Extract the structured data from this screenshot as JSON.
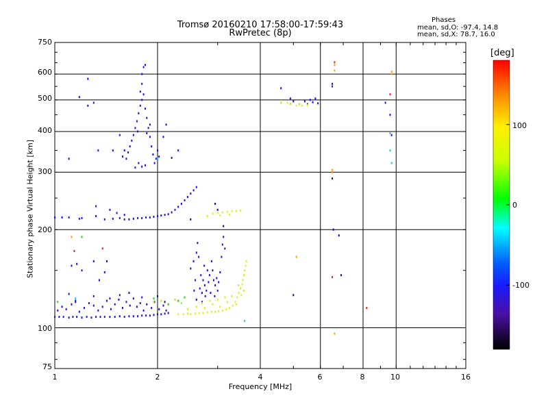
{
  "chart_data": {
    "type": "scatter",
    "title": "Tromsø 20160210 17:58:00-17:59:43",
    "subtitle": "RwPretec (8p)",
    "xlabel": "Frequency [MHz]",
    "ylabel": "Stationary phase Virtual Height [km]",
    "x_scale": "log",
    "y_scale": "log",
    "xlim": [
      1,
      16
    ],
    "ylim": [
      75,
      750
    ],
    "x_ticks": [
      1,
      2,
      4,
      6,
      8,
      10,
      16
    ],
    "y_ticks": [
      75,
      100,
      200,
      300,
      400,
      500,
      600,
      750
    ],
    "grid": true,
    "legend_box": {
      "title": "Phases",
      "line_o": "mean, sd,O: -97.4, 14.8",
      "line_x": "mean, sd,X:  78.7, 16.0"
    },
    "colorbar": {
      "unit": "[deg]",
      "range": [
        -180,
        180
      ],
      "ticks": [
        100,
        0,
        -100
      ]
    },
    "colors": {
      "blue": "#1414e6",
      "yellow": "#e4ec1e",
      "yellowgreen": "#b5e61e",
      "green": "#2ac82a",
      "cyan": "#1ec8e6",
      "orange": "#ff9a1a",
      "red": "#e02020",
      "navy": "#0c0c9a"
    },
    "series": [
      {
        "color": "blue",
        "points": [
          [
            1.0,
            108
          ],
          [
            1.03,
            108
          ],
          [
            1.06,
            108
          ],
          [
            1.1,
            107.5
          ],
          [
            1.13,
            108
          ],
          [
            1.16,
            108
          ],
          [
            1.2,
            107.5
          ],
          [
            1.24,
            108
          ],
          [
            1.28,
            107.5
          ],
          [
            1.32,
            108
          ],
          [
            1.36,
            108
          ],
          [
            1.4,
            108
          ],
          [
            1.45,
            108
          ],
          [
            1.5,
            108
          ],
          [
            1.55,
            108.5
          ],
          [
            1.6,
            108
          ],
          [
            1.65,
            108.5
          ],
          [
            1.7,
            108.5
          ],
          [
            1.75,
            108.5
          ],
          [
            1.8,
            109
          ],
          [
            1.85,
            109
          ],
          [
            1.9,
            109
          ],
          [
            1.95,
            109.5
          ],
          [
            2.0,
            110
          ],
          [
            2.05,
            110
          ],
          [
            2.1,
            110.5
          ],
          [
            2.15,
            111
          ],
          [
            1.02,
            113
          ],
          [
            1.05,
            116
          ],
          [
            1.08,
            114
          ],
          [
            1.12,
            118
          ],
          [
            1.15,
            120
          ],
          [
            1.18,
            112
          ],
          [
            1.22,
            115
          ],
          [
            1.26,
            119
          ],
          [
            1.3,
            117
          ],
          [
            1.34,
            113
          ],
          [
            1.38,
            116
          ],
          [
            1.42,
            121
          ],
          [
            1.46,
            114
          ],
          [
            1.5,
            118
          ],
          [
            1.54,
            122
          ],
          [
            1.58,
            115
          ],
          [
            1.62,
            120
          ],
          [
            1.66,
            117
          ],
          [
            1.7,
            123
          ],
          [
            1.74,
            116
          ],
          [
            1.78,
            119
          ],
          [
            1.82,
            113
          ],
          [
            1.86,
            118
          ],
          [
            1.92,
            115
          ],
          [
            1.96,
            120
          ],
          [
            2.02,
            114
          ],
          [
            2.08,
            117
          ],
          [
            2.12,
            113
          ],
          [
            1.1,
            127
          ],
          [
            1.15,
            121
          ],
          [
            1.3,
            125
          ],
          [
            1.45,
            123
          ],
          [
            1.55,
            126
          ],
          [
            1.65,
            128
          ],
          [
            1.8,
            124
          ],
          [
            1.0,
            218
          ],
          [
            1.05,
            218
          ],
          [
            1.1,
            218
          ],
          [
            1.18,
            216
          ],
          [
            1.32,
            220
          ],
          [
            1.4,
            215
          ],
          [
            1.48,
            216
          ],
          [
            1.55,
            217
          ],
          [
            1.6,
            215
          ],
          [
            1.65,
            215
          ],
          [
            1.7,
            216
          ],
          [
            1.75,
            217
          ],
          [
            1.8,
            217
          ],
          [
            1.85,
            218
          ],
          [
            1.9,
            218
          ],
          [
            1.95,
            219
          ],
          [
            2.0,
            220
          ],
          [
            2.05,
            221
          ],
          [
            2.1,
            222
          ],
          [
            2.15,
            223
          ],
          [
            2.2,
            226
          ],
          [
            2.25,
            230
          ],
          [
            2.3,
            235
          ],
          [
            2.35,
            240
          ],
          [
            2.4,
            246
          ],
          [
            2.45,
            252
          ],
          [
            2.5,
            258
          ],
          [
            2.55,
            264
          ],
          [
            2.6,
            270
          ],
          [
            1.32,
            236
          ],
          [
            1.45,
            230
          ],
          [
            1.52,
            225
          ],
          [
            1.6,
            222
          ],
          [
            1.2,
            217
          ],
          [
            2.5,
            152
          ],
          [
            2.55,
            160
          ],
          [
            2.6,
            170
          ],
          [
            2.62,
            182
          ],
          [
            2.64,
            165
          ],
          [
            2.68,
            145
          ],
          [
            2.72,
            140
          ],
          [
            2.75,
            135
          ],
          [
            2.78,
            130
          ],
          [
            2.8,
            150
          ],
          [
            2.84,
            145
          ],
          [
            2.88,
            160
          ],
          [
            2.92,
            140
          ],
          [
            2.95,
            135
          ],
          [
            3.0,
            130
          ],
          [
            3.05,
            148
          ],
          [
            3.08,
            165
          ],
          [
            3.1,
            180
          ],
          [
            3.12,
            190
          ],
          [
            3.15,
            175
          ],
          [
            2.58,
            140
          ],
          [
            2.66,
            132
          ],
          [
            2.7,
            128
          ],
          [
            2.74,
            155
          ],
          [
            2.82,
            138
          ],
          [
            2.86,
            128
          ],
          [
            2.9,
            150
          ],
          [
            2.94,
            125
          ],
          [
            2.98,
            142
          ],
          [
            3.02,
            138
          ],
          [
            2.56,
            130
          ],
          [
            2.76,
            125
          ],
          [
            2.6,
            122
          ],
          [
            2.7,
            120
          ],
          [
            1.62,
            330
          ],
          [
            1.64,
            345
          ],
          [
            1.66,
            360
          ],
          [
            1.68,
            375
          ],
          [
            1.7,
            390
          ],
          [
            1.72,
            410
          ],
          [
            1.74,
            430
          ],
          [
            1.76,
            455
          ],
          [
            1.78,
            480
          ],
          [
            1.8,
            500
          ],
          [
            1.82,
            520
          ],
          [
            1.84,
            470
          ],
          [
            1.86,
            440
          ],
          [
            1.88,
            410
          ],
          [
            1.9,
            385
          ],
          [
            1.92,
            360
          ],
          [
            1.94,
            340
          ],
          [
            1.96,
            320
          ],
          [
            1.98,
            330
          ],
          [
            2.0,
            350
          ],
          [
            1.72,
            310
          ],
          [
            1.76,
            320
          ],
          [
            1.8,
            312
          ],
          [
            1.84,
            315
          ],
          [
            1.78,
            530
          ],
          [
            1.8,
            560
          ],
          [
            1.8,
            600
          ],
          [
            1.82,
            630
          ],
          [
            1.84,
            640
          ],
          [
            1.75,
            400
          ],
          [
            1.86,
            395
          ],
          [
            1.9,
            420
          ],
          [
            2.02,
            335
          ],
          [
            2.08,
            385
          ],
          [
            2.12,
            420
          ],
          [
            1.58,
            335
          ],
          [
            1.6,
            350
          ],
          [
            1.25,
            580
          ],
          [
            1.18,
            510
          ],
          [
            1.3,
            490
          ],
          [
            1.25,
            480
          ],
          [
            1.55,
            390
          ],
          [
            1.34,
            350
          ],
          [
            1.48,
            350
          ],
          [
            1.1,
            330
          ],
          [
            2.3,
            350
          ],
          [
            2.2,
            332
          ],
          [
            1.12,
            155
          ],
          [
            1.16,
            157
          ],
          [
            1.2,
            150
          ],
          [
            1.3,
            160
          ],
          [
            1.35,
            140
          ],
          [
            1.4,
            148
          ],
          [
            4.6,
            543
          ],
          [
            4.9,
            505
          ],
          [
            5.0,
            495
          ],
          [
            5.4,
            495
          ],
          [
            5.5,
            485
          ],
          [
            5.6,
            500
          ],
          [
            5.7,
            492
          ],
          [
            5.8,
            505
          ],
          [
            5.9,
            488
          ],
          [
            6.5,
            560
          ],
          [
            6.5,
            550
          ],
          [
            9.3,
            490
          ],
          [
            9.6,
            450
          ],
          [
            9.7,
            390
          ]
        ]
      },
      {
        "color": "yellow",
        "points": [
          [
            2.3,
            110
          ],
          [
            2.38,
            110
          ],
          [
            2.45,
            110.5
          ],
          [
            2.5,
            110
          ],
          [
            2.58,
            110.5
          ],
          [
            2.65,
            111
          ],
          [
            2.72,
            111
          ],
          [
            2.8,
            111.5
          ],
          [
            2.88,
            112
          ],
          [
            2.95,
            112
          ],
          [
            3.02,
            112.5
          ],
          [
            3.1,
            113
          ],
          [
            3.18,
            114
          ],
          [
            3.25,
            115
          ],
          [
            3.32,
            117
          ],
          [
            3.38,
            120
          ],
          [
            3.42,
            124
          ],
          [
            3.46,
            128
          ],
          [
            3.5,
            132
          ],
          [
            3.54,
            136
          ],
          [
            3.56,
            140
          ],
          [
            3.58,
            145
          ],
          [
            3.6,
            150
          ],
          [
            3.62,
            155
          ],
          [
            3.64,
            160
          ],
          [
            2.45,
            114
          ],
          [
            2.6,
            116
          ],
          [
            2.75,
            115
          ],
          [
            2.9,
            118
          ],
          [
            3.05,
            116
          ],
          [
            3.2,
            120
          ],
          [
            3.3,
            125
          ],
          [
            3.4,
            118
          ],
          [
            3.45,
            135
          ],
          [
            3.52,
            126
          ],
          [
            3.58,
            130
          ],
          [
            2.7,
            119
          ],
          [
            2.85,
            121
          ],
          [
            3.0,
            122
          ],
          [
            3.15,
            124
          ],
          [
            2.9,
            224
          ],
          [
            3.0,
            225
          ],
          [
            3.1,
            226
          ],
          [
            3.2,
            227
          ],
          [
            3.3,
            228
          ],
          [
            3.4,
            228
          ],
          [
            3.5,
            229
          ],
          [
            2.8,
            220
          ],
          [
            3.05,
            221
          ],
          [
            3.25,
            222
          ],
          [
            4.8,
            490
          ],
          [
            5.1,
            480
          ],
          [
            5.3,
            480
          ],
          [
            5.5,
            482
          ]
        ]
      },
      {
        "color": "yellowgreen",
        "points": [
          [
            1.95,
            120
          ],
          [
            2.05,
            121
          ],
          [
            2.15,
            118
          ],
          [
            2.25,
            122
          ],
          [
            2.35,
            119
          ],
          [
            4.6,
            490
          ],
          [
            4.9,
            486
          ],
          [
            5.2,
            485
          ]
        ]
      },
      {
        "color": "green",
        "points": [
          [
            1.95,
            123
          ],
          [
            2.15,
            118
          ],
          [
            2.3,
            121
          ],
          [
            2.4,
            124
          ],
          [
            1.02,
            120
          ],
          [
            1.2,
            190
          ]
        ]
      },
      {
        "color": "cyan",
        "points": [
          [
            3.6,
            105
          ],
          [
            9.6,
            350
          ],
          [
            9.7,
            320
          ],
          [
            9.6,
            395
          ],
          [
            2.0,
            330
          ],
          [
            1.15,
            123
          ]
        ]
      },
      {
        "color": "orange",
        "points": [
          [
            6.6,
            640
          ],
          [
            6.6,
            615
          ],
          [
            9.7,
            610
          ],
          [
            9.7,
            600
          ],
          [
            6.6,
            96
          ],
          [
            6.5,
            305
          ],
          [
            6.5,
            300
          ],
          [
            5.1,
            165
          ],
          [
            1.12,
            190
          ]
        ]
      },
      {
        "color": "red",
        "points": [
          [
            9.6,
            520
          ],
          [
            6.6,
            652
          ],
          [
            6.5,
            143
          ],
          [
            8.2,
            115
          ],
          [
            1.14,
            172
          ],
          [
            1.38,
            175
          ]
        ]
      },
      {
        "color": "navy",
        "points": [
          [
            6.5,
            287
          ],
          [
            6.8,
            192
          ],
          [
            6.55,
            200
          ],
          [
            6.9,
            145
          ],
          [
            5.0,
            126
          ],
          [
            2.5,
            215
          ],
          [
            3.12,
            205
          ],
          [
            3.0,
            230
          ],
          [
            2.95,
            240
          ],
          [
            1.42,
            160
          ],
          [
            2.0,
            125
          ],
          [
            2.1,
            120
          ]
        ]
      }
    ]
  }
}
